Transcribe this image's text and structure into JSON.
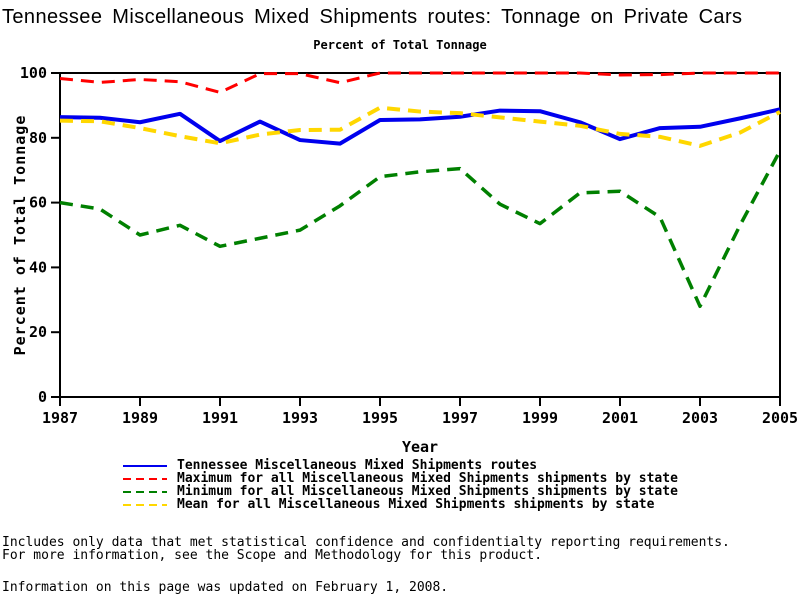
{
  "page": {
    "title": "Tennessee Miscellaneous Mixed Shipments routes: Tonnage on Private Cars",
    "footnote_line1": "Includes only data that met statistical confidence and confidentialty reporting requirements.",
    "footnote_line2": "For more information, see the Scope and Methodology for this product.",
    "updated_note": "Information on this page was updated on February 1, 2008."
  },
  "chart_data": {
    "type": "line",
    "title": "Percent of Total Tonnage",
    "xlabel": "Year",
    "ylabel": "Percent of Total Tonnage",
    "xlim": [
      1987,
      2005
    ],
    "ylim": [
      0,
      100
    ],
    "xticks": [
      1987,
      1989,
      1991,
      1993,
      1995,
      1997,
      1999,
      2001,
      2003,
      2005
    ],
    "yticks": [
      0,
      20,
      40,
      60,
      80,
      100
    ],
    "grid": false,
    "legend_position": "below-left",
    "x": [
      1987,
      1988,
      1989,
      1990,
      1991,
      1992,
      1993,
      1994,
      1995,
      1996,
      1997,
      1998,
      1999,
      2000,
      2001,
      2002,
      2003,
      2004,
      2005
    ],
    "series": [
      {
        "key": "tennessee-routes",
        "name": "Tennessee Miscellaneous Mixed Shipments routes",
        "color": "#0000ee",
        "style": "solid",
        "width": 4,
        "values": [
          86.4,
          86.2,
          84.8,
          87.4,
          79.0,
          85.0,
          79.3,
          78.2,
          85.5,
          85.7,
          86.5,
          88.4,
          88.2,
          84.8,
          79.6,
          83.0,
          83.4,
          86.0,
          88.8
        ]
      },
      {
        "key": "maximum-by-state",
        "name": "Maximum for all Miscellaneous Mixed Shipments shipments by state",
        "color": "#ff0000",
        "style": "dashed",
        "width": 3,
        "values": [
          98.3,
          97.1,
          98.0,
          97.3,
          94.0,
          99.8,
          99.8,
          97.0,
          100,
          100,
          100,
          100,
          100,
          100,
          99.4,
          99.5,
          100,
          100,
          100
        ]
      },
      {
        "key": "minimum-by-state",
        "name": "Minimum for all Miscellaneous Mixed Shipments shipments by state",
        "color": "#008000",
        "style": "dashed",
        "width": 3.5,
        "values": [
          60.0,
          58.0,
          50.0,
          53.0,
          46.5,
          49.0,
          51.5,
          59.0,
          68.0,
          69.5,
          70.5,
          59.5,
          53.5,
          63.0,
          63.5,
          55.5,
          28.0,
          53.0,
          76.0
        ]
      },
      {
        "key": "mean-by-state",
        "name": "Mean for all Miscellaneous Mixed Shipments shipments by state",
        "color": "#ffd700",
        "style": "dashed",
        "width": 4,
        "values": [
          85.3,
          85.1,
          83.0,
          80.5,
          78.3,
          81.0,
          82.4,
          82.5,
          89.3,
          88.1,
          87.6,
          86.3,
          85.0,
          83.7,
          81.2,
          80.3,
          77.5,
          81.6,
          88.0
        ]
      }
    ]
  }
}
